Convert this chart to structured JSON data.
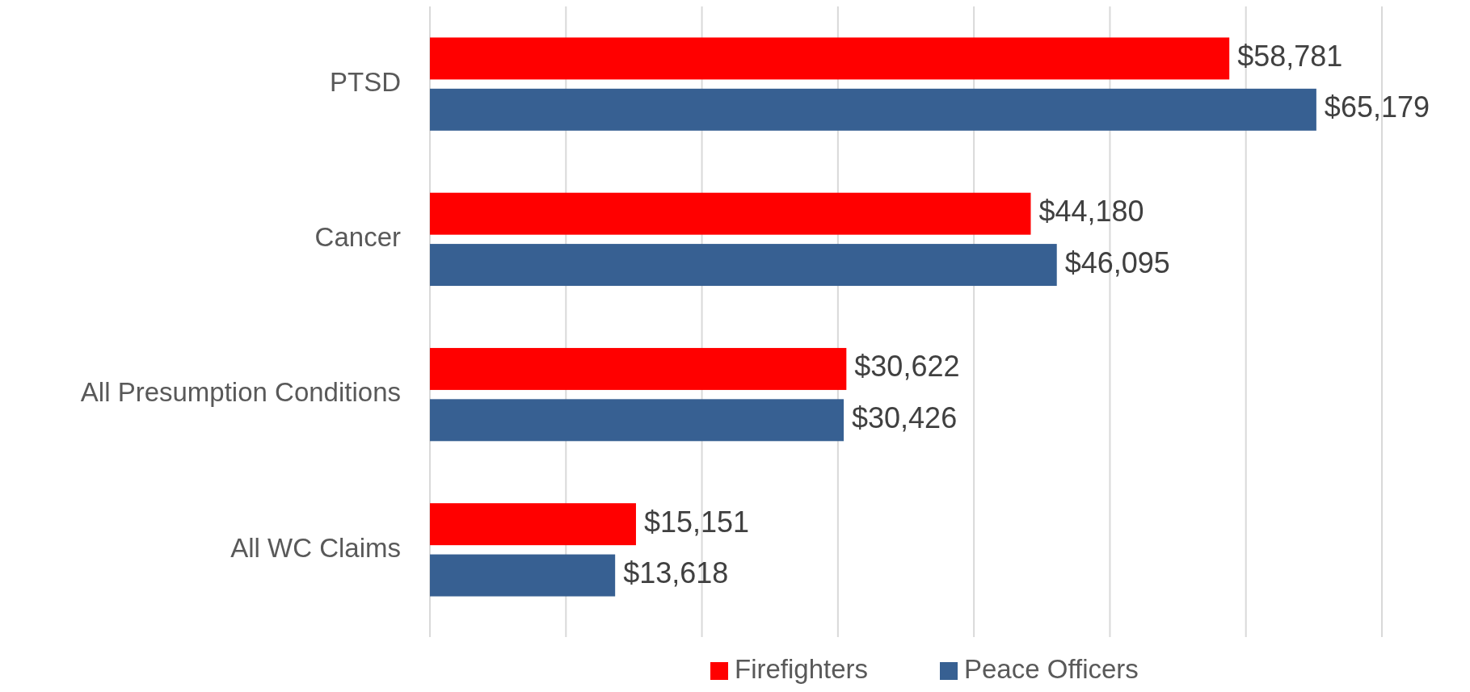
{
  "chart_data": {
    "type": "bar",
    "orientation": "horizontal",
    "categories": [
      "PTSD",
      "Cancer",
      "All Presumption Conditions",
      "All WC Claims"
    ],
    "series": [
      {
        "name": "Firefighters",
        "color": "#ff0000",
        "values": [
          58781,
          44180,
          30622,
          15151
        ],
        "value_labels": [
          "$58,781",
          "$44,180",
          "$30,622",
          "$15,151"
        ]
      },
      {
        "name": "Peace Officers",
        "color": "#376092",
        "values": [
          65179,
          46095,
          30426,
          13618
        ],
        "value_labels": [
          "$65,179",
          "$46,095",
          "$30,426",
          "$13,618"
        ]
      }
    ],
    "xlim": [
      0,
      70000
    ],
    "xticks": [
      {
        "value": 0,
        "label": null
      },
      {
        "value": 10000,
        "label": null
      },
      {
        "value": 20000,
        "label": null
      },
      {
        "value": 30000,
        "label": null
      },
      {
        "value": 40000,
        "label": null
      },
      {
        "value": 50000,
        "label": null
      },
      {
        "value": 60000,
        "label": null
      },
      {
        "value": 70000,
        "label": null
      }
    ],
    "grid": "x",
    "legend": "bottom",
    "tick_labels": "y"
  }
}
